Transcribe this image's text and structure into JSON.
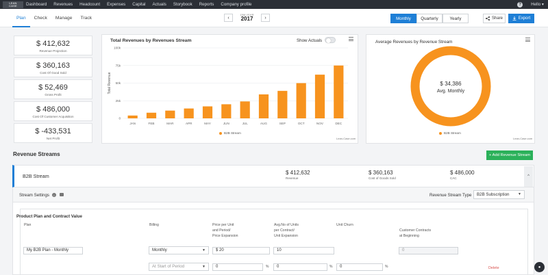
{
  "logo": {
    "text": "LEAN CASE"
  },
  "nav": [
    "Dashboard",
    "Revenues",
    "Headcount",
    "Expenses",
    "Capital",
    "Actuals",
    "Storybook",
    "Reports",
    "Company profile"
  ],
  "user": {
    "help": "?",
    "name": "Hello"
  },
  "tabs": [
    "Plan",
    "Check",
    "Manage",
    "Track"
  ],
  "year": {
    "label": "15M YEAR",
    "value": "2017",
    "prev": "‹",
    "next": "›"
  },
  "periods": [
    "Monthly",
    "Quarterly",
    "Yearly"
  ],
  "actions": {
    "share": "Share",
    "export": "Export"
  },
  "kpis": [
    {
      "value": "$ 412,632",
      "label": "Revenue Projection"
    },
    {
      "value": "$ 360,163",
      "label": "Cost Of Good Sold"
    },
    {
      "value": "$ 52,469",
      "label": "Gross Profit"
    },
    {
      "value": "$ 486,000",
      "label": "Cost Of Customer Acquisition"
    },
    {
      "value": "$ -433,531",
      "label": "Net Profit"
    }
  ],
  "bar_panel": {
    "title": "Total Revenues by Revenues Stream",
    "toggle_label": "Show Actuals",
    "credit": "Lean-Case.com"
  },
  "donut_panel": {
    "title": "Average Revenues by Revenue Stream",
    "center_value": "$ 34,386",
    "center_label": "Avg. Monthly",
    "credit": "Lean-Case.com"
  },
  "colors": {
    "accent": "#1e7fd6",
    "series": "#f7931e",
    "add": "#2bb15a",
    "delete": "#d9534f"
  },
  "chart_data": [
    {
      "type": "bar",
      "title": "Total Revenues by Revenues Stream",
      "xlabel": "",
      "ylabel": "Total Revenue",
      "categories": [
        "JAN",
        "FEB",
        "MAR",
        "APR",
        "MAY",
        "JUN",
        "JUL",
        "AUG",
        "SEP",
        "OCT",
        "NOV",
        "DEC"
      ],
      "series": [
        {
          "name": "B2B Stream",
          "values": [
            4000,
            8000,
            11000,
            14000,
            17000,
            20000,
            24000,
            34000,
            39000,
            50000,
            62000,
            75000
          ]
        }
      ],
      "ylim": [
        0,
        100000
      ],
      "yticks": [
        "0",
        "25k",
        "50k",
        "75k",
        "100k"
      ],
      "grid": true,
      "legend": "bottom"
    },
    {
      "type": "pie",
      "title": "Average Revenues by Revenue Stream",
      "categories": [
        "B2B Stream"
      ],
      "values": [
        100
      ],
      "legend": "bottom"
    }
  ],
  "revenue_streams": {
    "title": "Revenue Streams",
    "add_label": "+ Add Revenue Stream",
    "stream": {
      "name": "B2B Stream",
      "metrics": [
        {
          "value": "$ 412,632",
          "label": "Revenue"
        },
        {
          "value": "$ 360,163",
          "label": "Cost of Goods Sold"
        },
        {
          "value": "$ 486,000",
          "label": "CAC"
        }
      ],
      "collapse_icon": "^"
    },
    "settings": {
      "label": "Stream Settings",
      "type_label": "Revenue Stream Type",
      "type_value": "B2B Subscription",
      "section_title": "Product Plan and Contract Value",
      "columns": {
        "plan": "Plan",
        "billing": "Billing",
        "price": [
          "Price per Unit",
          "and Period/",
          "Price Expansion"
        ],
        "avg_units": [
          "Avg.No of Units",
          "per Contract/",
          "Unit Expansion"
        ],
        "churn": "Unit Churn",
        "contracts": [
          "Customer Contracts",
          "at Beginning"
        ]
      },
      "row1": {
        "plan": "My B2B Plan - Monthly",
        "billing": "Monthly",
        "price": "$ 20",
        "units": "10",
        "contracts": "0"
      },
      "row2": {
        "billing": "At Start of Period",
        "price_exp": "0",
        "unit_exp": "0",
        "churn": "0",
        "pct": "%",
        "delete": "Delete"
      }
    }
  }
}
